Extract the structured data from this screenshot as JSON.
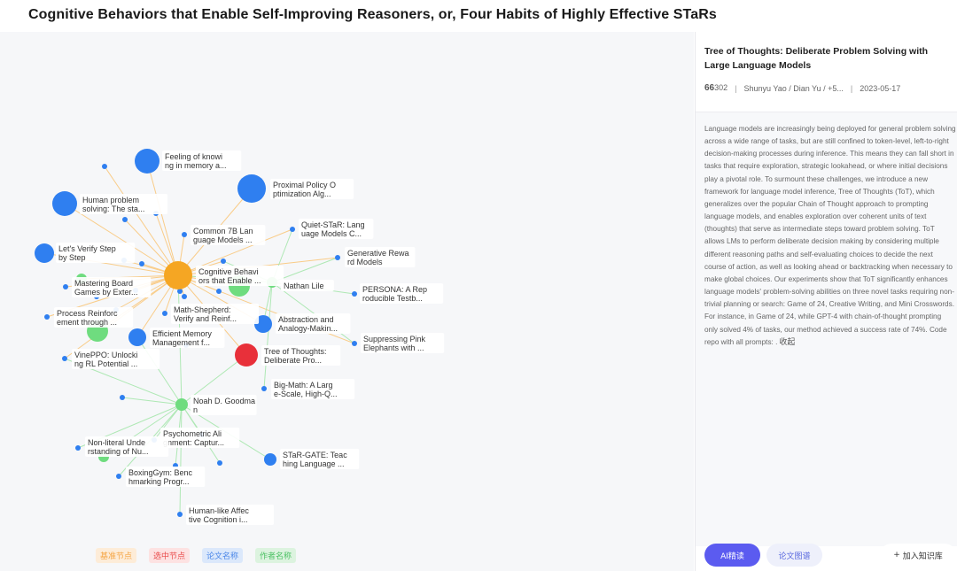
{
  "page_title": "Cognitive Behaviors that Enable Self-Improving Reasoners, or, Four Habits of Highly Effective STaRs",
  "colors": {
    "base": "#f5a623",
    "selected": "#e8303a",
    "paper": "#2f7ff0",
    "author": "#6fdc7f",
    "edge_orange": "#f9cc88",
    "edge_green": "#aee8b4"
  },
  "graph": {
    "nodes": [
      {
        "label": "Cognitive Behaviors that Enable ...",
        "type": "base"
      },
      {
        "label": "Tree of Thoughts: Deliberate Pro...",
        "type": "selected"
      },
      {
        "label": "Feeling of knowing in memory a...",
        "type": "paper"
      },
      {
        "label": "Proximal Policy Optimization Alg...",
        "type": "paper"
      },
      {
        "label": "Human problem solving: The sta...",
        "type": "paper"
      },
      {
        "label": "Common 7B Language Models ...",
        "type": "paper"
      },
      {
        "label": "Quiet-STaR: Language Models C...",
        "type": "paper"
      },
      {
        "label": "Let's Verify Step by Step",
        "type": "paper"
      },
      {
        "label": "Generative Reward Models",
        "type": "paper"
      },
      {
        "label": "Mastering Board Games by Exter...",
        "type": "paper"
      },
      {
        "label": "Nathan Lile",
        "type": "author"
      },
      {
        "label": "PERSONA: A Reproducible Testb...",
        "type": "paper"
      },
      {
        "label": "Process Reinforcement through ...",
        "type": "paper"
      },
      {
        "label": "Math-Shepherd: Verify and Reinf...",
        "type": "paper"
      },
      {
        "label": "Abstraction and Analogy-Makin...",
        "type": "paper"
      },
      {
        "label": "Efficient Memory Management f...",
        "type": "paper"
      },
      {
        "label": "Suppressing Pink Elephants with ...",
        "type": "paper"
      },
      {
        "label": "VinePPO: Unlocking RL Potential ...",
        "type": "paper"
      },
      {
        "label": "Big-Math: A Large-Scale, High-Q...",
        "type": "paper"
      },
      {
        "label": "Noah D. Goodman",
        "type": "author"
      },
      {
        "label": "Psychometric Alignment: Captur...",
        "type": "paper"
      },
      {
        "label": "Non-literal Understanding of Nu...",
        "type": "paper"
      },
      {
        "label": "STaR-GATE: Teaching Language ...",
        "type": "paper"
      },
      {
        "label": "BoxingGym: Benchmarking Progr...",
        "type": "paper"
      },
      {
        "label": "Human-like Affective Cognition i...",
        "type": "paper"
      }
    ]
  },
  "legend": {
    "base": "基准节点",
    "selected": "选中节点",
    "paper": "论文名称",
    "author": "作者名称"
  },
  "side": {
    "title": "Tree of Thoughts: Deliberate Problem Solving with Large Language Models",
    "citations": "302",
    "quote_icon": "66",
    "authors": "Shunyu Yao / Dian Yu / +5...",
    "date": "2023-05-17",
    "abstract": "Language models are increasingly being deployed for general problem solving across a wide range of tasks, but are still confined to token-level, left-to-right decision-making processes during inference. This means they can fall short in tasks that require exploration, strategic lookahead, or where initial decisions play a pivotal role. To surmount these challenges, we introduce a new framework for language model inference, Tree of Thoughts (ToT), which generalizes over the popular Chain of Thought approach to prompting language models, and enables exploration over coherent units of text (thoughts) that serve as intermediate steps toward problem solving. ToT allows LMs to perform deliberate decision making by considering multiple different reasoning paths and self-evaluating choices to decide the next course of action, as well as looking ahead or backtracking when necessary to make global choices. Our experiments show that ToT significantly enhances language models' problem-solving abilities on three novel tasks requiring non-trivial planning or search: Game of 24, Creative Writing, and Mini Crosswords. For instance, in Game of 24, while GPT-4 with chain-of-thought prompting only solved 4% of tasks, our method achieved a success rate of 74%. Code repo with all prompts: .",
    "collapse": "收起",
    "btn_ai": "AI精读",
    "btn_graph": "论文图谱",
    "btn_add": "加入知识库",
    "btn_add_icon": "+"
  }
}
